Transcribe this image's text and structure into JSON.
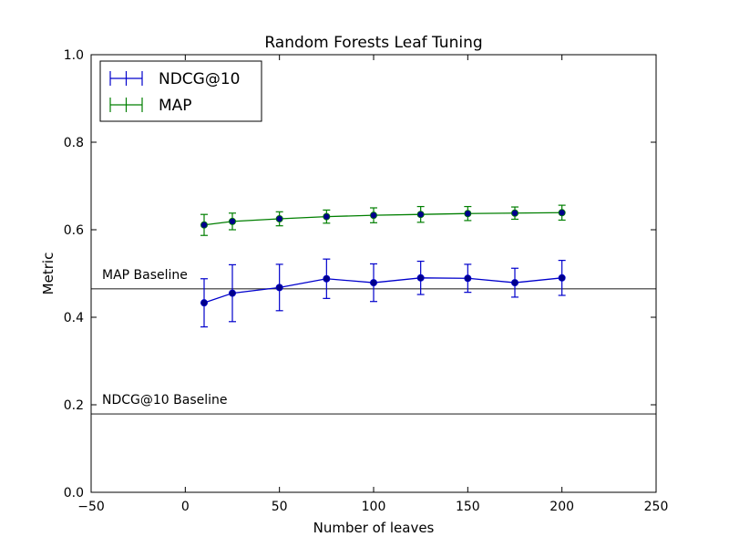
{
  "chart_data": {
    "type": "line",
    "title": "Random Forests Leaf Tuning",
    "xlabel": "Number of leaves",
    "ylabel": "Metric",
    "xlim": [
      -50,
      250
    ],
    "ylim": [
      0.0,
      1.0
    ],
    "x_ticks": [
      "−50",
      "0",
      "50",
      "100",
      "150",
      "200",
      "250"
    ],
    "y_ticks": [
      "0.0",
      "0.2",
      "0.4",
      "0.6",
      "0.8",
      "1.0"
    ],
    "grid": false,
    "legend_position": "top-left",
    "x": [
      10,
      25,
      50,
      75,
      100,
      125,
      150,
      175,
      200
    ],
    "series": [
      {
        "name": "NDCG@10",
        "color": "#0000cc",
        "values": [
          0.433,
          0.455,
          0.468,
          0.488,
          0.479,
          0.49,
          0.489,
          0.479,
          0.49
        ],
        "errors": [
          0.055,
          0.065,
          0.053,
          0.045,
          0.043,
          0.038,
          0.032,
          0.033,
          0.04
        ]
      },
      {
        "name": "MAP",
        "color": "#007f00",
        "values": [
          0.611,
          0.619,
          0.625,
          0.63,
          0.633,
          0.635,
          0.637,
          0.638,
          0.639
        ],
        "errors": [
          0.024,
          0.019,
          0.016,
          0.015,
          0.017,
          0.018,
          0.016,
          0.014,
          0.017
        ]
      }
    ],
    "baselines": [
      {
        "label": "MAP Baseline",
        "value": 0.465,
        "color": "#4a7a2a"
      },
      {
        "label": "NDCG@10 Baseline",
        "value": 0.179,
        "color": "#1a4a9a"
      }
    ]
  }
}
